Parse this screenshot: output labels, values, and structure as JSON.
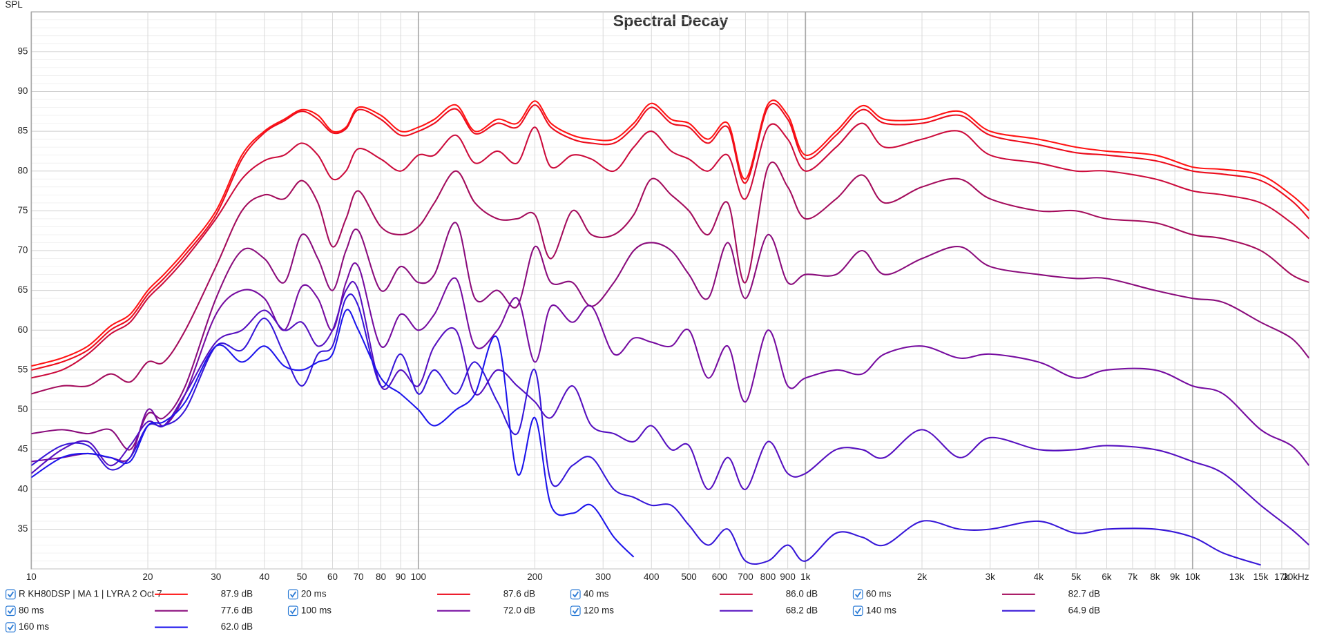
{
  "chart_data": {
    "type": "line",
    "title": "Spectral Decay",
    "y_label": "SPL",
    "log_x": true,
    "grid": true,
    "xlim": [
      10,
      20000
    ],
    "ylim": [
      30,
      100
    ],
    "yticks": [
      35,
      40,
      45,
      50,
      55,
      60,
      65,
      70,
      75,
      80,
      85,
      90,
      95
    ],
    "xticks": [
      10,
      20,
      30,
      40,
      50,
      60,
      70,
      80,
      90,
      100,
      200,
      300,
      400,
      500,
      600,
      700,
      800,
      900,
      {
        "value": 1000,
        "label": "1k"
      },
      {
        "value": 2000,
        "label": "2k"
      },
      {
        "value": 3000,
        "label": "3k"
      },
      {
        "value": 4000,
        "label": "4k"
      },
      {
        "value": 5000,
        "label": "5k"
      },
      {
        "value": 6000,
        "label": "6k"
      },
      {
        "value": 7000,
        "label": "7k"
      },
      {
        "value": 8000,
        "label": "8k"
      },
      {
        "value": 9000,
        "label": "9k"
      },
      {
        "value": 10000,
        "label": "10k"
      },
      {
        "value": 13000,
        "label": "13k"
      },
      {
        "value": 15000,
        "label": "15k"
      },
      {
        "value": 17000,
        "label": "17k"
      },
      {
        "value": 20000,
        "label": "20kHz"
      }
    ],
    "x": [
      10,
      12,
      14,
      16,
      18,
      20,
      22,
      25,
      30,
      35,
      40,
      45,
      50,
      55,
      60,
      65,
      70,
      80,
      90,
      100,
      110,
      125,
      140,
      160,
      180,
      200,
      220,
      250,
      280,
      320,
      360,
      400,
      450,
      500,
      560,
      630,
      700,
      800,
      900,
      1000,
      1200,
      1400,
      1600,
      2000,
      2500,
      3000,
      4000,
      5000,
      6000,
      8000,
      10000,
      12000,
      15000,
      18000,
      20000
    ],
    "series": [
      {
        "name": "R KH80DSP | MA 1 | LYRA 2 Oct 7",
        "legend_value": "87.9 dB",
        "color": "#ff1414",
        "values": [
          55.5,
          56.5,
          58,
          60.5,
          62,
          65,
          67,
          70,
          75,
          82,
          85,
          86.5,
          87.7,
          87,
          85,
          85.5,
          88,
          87,
          85,
          85.5,
          86.5,
          88.3,
          85,
          86.5,
          86,
          88.8,
          86,
          84.5,
          84,
          84,
          86,
          88.5,
          86.5,
          86,
          84,
          86,
          79,
          88.4,
          87,
          82,
          85,
          88.2,
          86.5,
          86.5,
          87.5,
          85,
          84,
          83,
          82.5,
          82,
          80.5,
          80.2,
          79.5,
          77,
          75
        ]
      },
      {
        "name": "20 ms",
        "legend_value": "87.6 dB",
        "color": "#ec0c1c",
        "values": [
          55,
          56,
          57.5,
          60,
          61.5,
          64.5,
          66.5,
          69.5,
          74.5,
          81.5,
          84.8,
          86.3,
          87.5,
          86.5,
          84.8,
          85.3,
          87.7,
          86.5,
          84.5,
          85,
          86,
          87.8,
          84.7,
          86,
          85.5,
          88.3,
          85.5,
          84,
          83.5,
          83.5,
          85.5,
          88,
          86,
          85.5,
          83.5,
          85.5,
          78.5,
          88,
          86.5,
          81.5,
          84.5,
          87.7,
          86,
          86,
          87,
          84.5,
          83.3,
          82.3,
          82,
          81.3,
          80,
          79.6,
          78.8,
          76.3,
          74
        ]
      },
      {
        "name": "40 ms",
        "legend_value": "86.0 dB",
        "color": "#cc0c3c",
        "values": [
          54,
          55,
          57,
          59.5,
          61,
          64,
          66,
          69,
          74,
          79,
          81.3,
          82,
          83.5,
          82,
          79,
          80,
          82.8,
          81.5,
          80,
          82,
          82,
          84.5,
          81,
          82.5,
          81,
          85.5,
          80.5,
          82,
          81.5,
          80,
          83,
          85,
          82.5,
          81.5,
          80,
          82,
          76.5,
          85.5,
          84,
          80,
          83,
          86,
          83,
          84,
          85,
          82,
          81,
          80,
          80,
          79,
          77.5,
          77,
          76,
          73.5,
          71.5
        ]
      },
      {
        "name": "60 ms",
        "legend_value": "82.7 dB",
        "color": "#a40c5c",
        "values": [
          52,
          53,
          53,
          54.5,
          53.5,
          56,
          56,
          60,
          68,
          75,
          77,
          76.5,
          78.8,
          76,
          70.5,
          74,
          77.5,
          73,
          72,
          73,
          76,
          80,
          76,
          74,
          74,
          74.5,
          69,
          75,
          72,
          72,
          74.5,
          79,
          77,
          75,
          72,
          76,
          66,
          80.5,
          78,
          74,
          76.5,
          79.5,
          76,
          78,
          79,
          76.5,
          75,
          75,
          74,
          73.5,
          72,
          71.5,
          70,
          67,
          66
        ]
      },
      {
        "name": "80 ms",
        "legend_value": "77.6 dB",
        "color": "#8a0c7c",
        "values": [
          47,
          47.5,
          47,
          47.5,
          45,
          49.5,
          49,
          53,
          64,
          70,
          69,
          66,
          72,
          69,
          65,
          70,
          72.5,
          65,
          68,
          66,
          67,
          73.5,
          64,
          65,
          63,
          70.5,
          66,
          66,
          63,
          66,
          70,
          71,
          70,
          67,
          64,
          71,
          64,
          72,
          66,
          67,
          67,
          70,
          67,
          69,
          70.5,
          68,
          67,
          66.5,
          66.5,
          65,
          64,
          63.5,
          61,
          59,
          56.5
        ]
      },
      {
        "name": "100 ms",
        "legend_value": "72.0 dB",
        "color": "#760ca0",
        "values": [
          43.5,
          44,
          44.5,
          44,
          44,
          50,
          48,
          52,
          62,
          65,
          64,
          60,
          65.5,
          64,
          60,
          66,
          68,
          58,
          62,
          60,
          62,
          66.5,
          58,
          60,
          64,
          56,
          63,
          61,
          63,
          57,
          59,
          58.5,
          58,
          60,
          54,
          58,
          51,
          60,
          53,
          54,
          55,
          54.5,
          57,
          58,
          56.5,
          57,
          56,
          54,
          55,
          55,
          53,
          52,
          47.5,
          45.5,
          43
        ]
      },
      {
        "name": "120 ms",
        "legend_value": "68.2 dB",
        "color": "#5610c0",
        "values": [
          42,
          45,
          46,
          43,
          45.5,
          48.5,
          48,
          52,
          58.5,
          60,
          62.5,
          60,
          61,
          58,
          60,
          65,
          65,
          53,
          55,
          53,
          58,
          60,
          52,
          55,
          53,
          51,
          49,
          53,
          48,
          47,
          46,
          48,
          45,
          45.5,
          40,
          44,
          40,
          46,
          42,
          42,
          45,
          45,
          44,
          47.5,
          44,
          46.5,
          45,
          45,
          45.5,
          45,
          43.5,
          42,
          38,
          35,
          33
        ]
      },
      {
        "name": "140 ms",
        "legend_value": "64.9 dB",
        "color": "#3616d8",
        "values": [
          43,
          45.5,
          45.5,
          42.5,
          44,
          48,
          48,
          50,
          58,
          57.5,
          61.5,
          57,
          53,
          57,
          58,
          64,
          63,
          53,
          57,
          52,
          55,
          52,
          56,
          51,
          47,
          55,
          41,
          43,
          44,
          40,
          39,
          38,
          38,
          35.5,
          33,
          35,
          31,
          31,
          33,
          31,
          34.5,
          34,
          33,
          36,
          35,
          35,
          36,
          34.5,
          35,
          35,
          34,
          32,
          30.5,
          null,
          null
        ]
      },
      {
        "name": "160 ms",
        "legend_value": "62.0 dB",
        "color": "#1c14ec",
        "values": [
          41.5,
          44,
          44.5,
          44,
          43.5,
          48,
          48.5,
          51,
          58,
          56,
          58,
          55.5,
          55,
          56,
          57,
          62.5,
          60,
          54,
          52,
          50,
          48,
          50,
          52,
          59,
          42,
          49,
          38,
          37,
          38,
          34,
          31.5,
          null,
          null,
          null,
          null,
          null,
          null,
          null,
          null,
          null,
          null,
          null,
          null,
          null,
          null,
          null,
          null,
          null,
          null,
          null,
          null,
          null,
          null,
          null,
          null
        ]
      }
    ]
  }
}
